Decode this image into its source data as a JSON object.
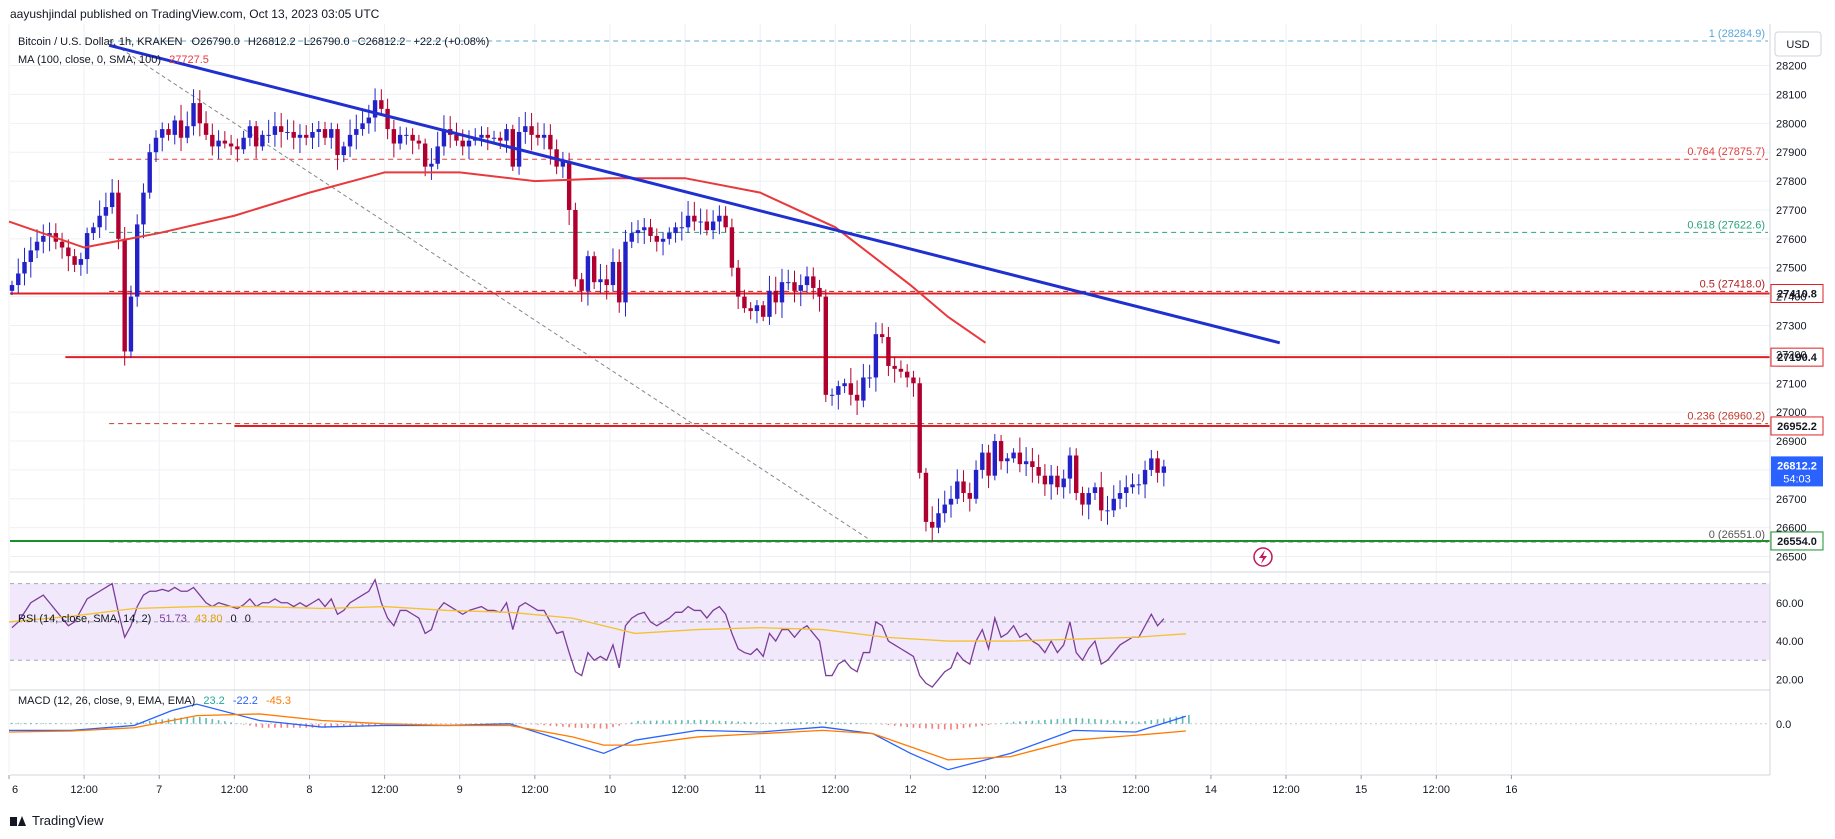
{
  "publisher": "aayushjindal published on TradingView.com, Oct 13, 2023 03:05 UTC",
  "currency_button": "USD",
  "brand": "TradingView",
  "colors": {
    "up": "#2222c8",
    "down": "#b00030",
    "trendline": "#1f2fd0",
    "ma": "#e8393c",
    "level": "#e21f24",
    "support": "#1b8f2a",
    "rsi": "#7b3d9a",
    "rsi_ma": "#f2c230",
    "macd": "#2962ff",
    "signal": "#ff7a00"
  },
  "chart_data": [
    {
      "type": "candlestick",
      "title": "Bitcoin / U.S. Dollar, 1h, KRAKEN",
      "ohlc_legend": {
        "o": "O26790.0",
        "h": "H26812.2",
        "l": "L26790.0",
        "c": "C26812.2",
        "chg": "+22.2 (+0.08%)"
      },
      "indicator_label": "MA (100, close, 0, SMA, 100)",
      "indicator_value": "27727.5",
      "ylim": [
        26450,
        28330
      ],
      "y_ticks": [
        26500,
        26600,
        26700,
        26800,
        26900,
        27000,
        27100,
        27200,
        27300,
        27400,
        27500,
        27600,
        27700,
        27800,
        27900,
        28000,
        28100,
        28200
      ],
      "x_ticks": [
        "6",
        "12:00",
        "7",
        "12:00",
        "8",
        "12:00",
        "9",
        "12:00",
        "10",
        "12:00",
        "11",
        "12:00",
        "12",
        "12:00",
        "13",
        "12:00",
        "14",
        "12:00",
        "15",
        "12:00",
        "16"
      ],
      "x_tick_hours": [
        0,
        12,
        24,
        36,
        48,
        60,
        72,
        84,
        96,
        108,
        120,
        132,
        144,
        156,
        168,
        180,
        192,
        204,
        216,
        228,
        240
      ],
      "closes": [
        27440,
        27480,
        27520,
        27560,
        27590,
        27610,
        27620,
        27590,
        27570,
        27540,
        27510,
        27530,
        27620,
        27640,
        27680,
        27710,
        27760,
        27600,
        27210,
        27400,
        27650,
        27760,
        27900,
        27950,
        27980,
        27960,
        28010,
        27950,
        27990,
        28070,
        28000,
        27960,
        27920,
        27940,
        27930,
        27920,
        27910,
        27950,
        27990,
        27920,
        27960,
        27960,
        27990,
        27970,
        27970,
        27950,
        27960,
        27950,
        27970,
        27980,
        27950,
        27980,
        27890,
        27920,
        27960,
        27980,
        28000,
        28020,
        28080,
        28050,
        27980,
        27930,
        27960,
        27960,
        27940,
        27930,
        27850,
        27860,
        27920,
        27980,
        27960,
        27940,
        27920,
        27940,
        27950,
        27960,
        27950,
        27950,
        27940,
        27980,
        27850,
        27970,
        27990,
        27960,
        27950,
        27960,
        27910,
        27850,
        27870,
        27700,
        27460,
        27420,
        27540,
        27450,
        27460,
        27440,
        27520,
        27380,
        27590,
        27620,
        27630,
        27640,
        27610,
        27590,
        27600,
        27620,
        27640,
        27640,
        27680,
        27660,
        27660,
        27630,
        27660,
        27680,
        27640,
        27500,
        27400,
        27360,
        27350,
        27370,
        27330,
        27420,
        27380,
        27450,
        27450,
        27420,
        27440,
        27470,
        27430,
        27400,
        27060,
        27060,
        27090,
        27100,
        27060,
        27040,
        27120,
        27120,
        27270,
        27260,
        27160,
        27150,
        27140,
        27120,
        27100,
        26790,
        26620,
        26600,
        26650,
        26680,
        26700,
        26760,
        26720,
        26700,
        26800,
        26860,
        26780,
        26900,
        26830,
        26840,
        26860,
        26820,
        26830,
        26810,
        26780,
        26750,
        26780,
        26740,
        26770,
        26850,
        26720,
        26680,
        26720,
        26740,
        26660,
        26660,
        26700,
        26720,
        26740,
        26750,
        26750,
        26800,
        26840,
        26790,
        26812
      ],
      "series": [
        {
          "name": "MA (100)",
          "x": [
            0,
            12,
            24,
            36,
            48,
            60,
            72,
            84,
            96,
            108,
            120,
            132,
            138,
            144,
            150,
            156
          ],
          "values": [
            27660,
            27570,
            27620,
            27680,
            27760,
            27830,
            27830,
            27800,
            27810,
            27810,
            27760,
            27640,
            27540,
            27440,
            27330,
            27240
          ]
        }
      ],
      "trendline": {
        "x": [
          16,
          203
        ],
        "values": [
          28270,
          27240
        ]
      },
      "fib_swing": {
        "x": [
          16,
          138
        ],
        "values": [
          28284.9,
          26551.0
        ]
      },
      "fib_levels": [
        {
          "label": "1 (28284.9)",
          "value": 28284.9
        },
        {
          "label": "0.764 (27875.7)",
          "value": 27875.7
        },
        {
          "label": "0.618 (27622.6)",
          "value": 27622.6
        },
        {
          "label": "0.5 (27418.0)",
          "value": 27418.0
        },
        {
          "label": "0.236 (26960.2)",
          "value": 26960.2
        },
        {
          "label": "0 (26551.0)",
          "value": 26551.0
        }
      ],
      "price_tags": [
        {
          "label": "27410.8",
          "value": 27410.8,
          "color": "level"
        },
        {
          "label": "27190.4",
          "value": 27190.4,
          "color": "level"
        },
        {
          "label": "26952.2",
          "value": 26952.2,
          "color": "level"
        },
        {
          "label": "26554.0",
          "value": 26554.0,
          "color": "support"
        }
      ],
      "last_price": {
        "label": "26812.2",
        "countdown": "54:03",
        "value": 26812.2
      }
    },
    {
      "type": "line",
      "title": "RSI (14, close, SMA, 14, 2)",
      "legend_values": [
        "51.73",
        "43.80",
        "0",
        "0"
      ],
      "ylim": [
        15,
        75
      ],
      "y_ticks": [
        20,
        40,
        60
      ],
      "y_tick_labels": [
        "20.00",
        "40.00",
        "60.00"
      ],
      "band": [
        30,
        70
      ],
      "mid": 50,
      "series": [
        {
          "name": "RSI",
          "values": [
            47,
            50,
            55,
            60,
            62,
            64,
            60,
            56,
            52,
            48,
            50,
            56,
            62,
            64,
            66,
            68,
            70,
            55,
            42,
            48,
            58,
            64,
            66,
            66,
            67,
            66,
            68,
            66,
            66,
            68,
            64,
            60,
            58,
            60,
            59,
            58,
            57,
            59,
            62,
            58,
            60,
            60,
            62,
            60,
            60,
            58,
            60,
            58,
            60,
            62,
            58,
            62,
            54,
            56,
            60,
            62,
            64,
            66,
            72,
            60,
            52,
            48,
            56,
            56,
            54,
            52,
            44,
            46,
            56,
            60,
            58,
            56,
            54,
            56,
            57,
            58,
            56,
            56,
            55,
            60,
            46,
            58,
            60,
            58,
            56,
            56,
            50,
            44,
            45,
            34,
            24,
            22,
            34,
            30,
            32,
            30,
            38,
            26,
            48,
            52,
            54,
            55,
            50,
            48,
            50,
            52,
            55,
            55,
            58,
            56,
            56,
            52,
            56,
            58,
            54,
            44,
            36,
            34,
            33,
            36,
            32,
            44,
            40,
            46,
            46,
            42,
            46,
            48,
            44,
            40,
            22,
            22,
            28,
            30,
            26,
            24,
            34,
            34,
            50,
            48,
            40,
            38,
            36,
            34,
            32,
            22,
            18,
            16,
            20,
            24,
            26,
            34,
            30,
            28,
            40,
            46,
            36,
            52,
            42,
            44,
            48,
            42,
            44,
            40,
            38,
            34,
            40,
            34,
            38,
            50,
            34,
            30,
            36,
            40,
            28,
            30,
            34,
            38,
            40,
            42,
            42,
            48,
            54,
            48,
            51.7
          ]
        },
        {
          "name": "RSI MA",
          "x": [
            0,
            10,
            20,
            30,
            40,
            50,
            60,
            70,
            80,
            90,
            100,
            110,
            120,
            130,
            140,
            150,
            160,
            170,
            180,
            188
          ],
          "values": [
            50,
            53,
            57,
            58,
            58,
            57,
            58,
            56,
            55,
            52,
            44,
            46,
            47,
            46,
            42,
            40,
            40,
            41,
            42,
            43.8
          ]
        }
      ]
    },
    {
      "type": "bar+line",
      "title": "MACD (12, 26, close, 9, EMA, EMA)",
      "legend_values": [
        "23.2",
        "-22.2",
        "-45.3"
      ],
      "ylim": [
        -150,
        100
      ],
      "y_ticks": [
        0
      ],
      "y_tick_labels": [
        "0.0"
      ],
      "series": [
        {
          "name": "MACD",
          "x": [
            0,
            10,
            20,
            26,
            30,
            40,
            50,
            60,
            70,
            80,
            90,
            95,
            100,
            110,
            120,
            130,
            138,
            144,
            150,
            160,
            170,
            180,
            188
          ],
          "values": [
            -20,
            -20,
            -5,
            40,
            60,
            10,
            -10,
            -5,
            -5,
            0,
            -60,
            -90,
            -50,
            -20,
            -25,
            -10,
            -30,
            -90,
            -140,
            -90,
            -20,
            -25,
            23
          ]
        },
        {
          "name": "Signal",
          "x": [
            0,
            10,
            20,
            26,
            30,
            40,
            50,
            60,
            70,
            80,
            90,
            95,
            100,
            110,
            120,
            130,
            138,
            144,
            150,
            160,
            170,
            180,
            188
          ],
          "values": [
            -25,
            -22,
            -12,
            10,
            25,
            30,
            10,
            0,
            -5,
            -5,
            -40,
            -65,
            -65,
            -40,
            -30,
            -20,
            -30,
            -70,
            -110,
            -100,
            -50,
            -35,
            -22
          ]
        }
      ]
    }
  ]
}
